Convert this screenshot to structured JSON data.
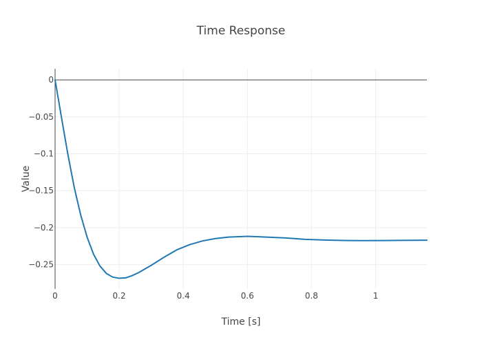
{
  "chart_data": {
    "type": "line",
    "title": "Time Response",
    "xlabel": "Time [s]",
    "ylabel": "Value",
    "xlim": [
      0,
      1.16
    ],
    "ylim": [
      -0.283,
      0.015
    ],
    "xticks": [
      0,
      0.2,
      0.4,
      0.6,
      0.8,
      1
    ],
    "xtick_labels": [
      "0",
      "0.2",
      "0.4",
      "0.6",
      "0.8",
      "1"
    ],
    "yticks": [
      0,
      -0.05,
      -0.1,
      -0.15,
      -0.2,
      -0.25
    ],
    "ytick_labels": [
      "0",
      "−0.05",
      "−0.1",
      "−0.15",
      "−0.2",
      "−0.25"
    ],
    "grid": true,
    "legend": "none",
    "colors": {
      "line": "#1f77b4"
    },
    "series": [
      {
        "x": [
          0,
          0.02,
          0.04,
          0.06,
          0.08,
          0.1,
          0.12,
          0.14,
          0.16,
          0.18,
          0.2,
          0.22,
          0.24,
          0.26,
          0.28,
          0.3,
          0.34,
          0.38,
          0.42,
          0.46,
          0.5,
          0.54,
          0.6,
          0.66,
          0.72,
          0.78,
          0.84,
          0.9,
          0.96,
          1.02,
          1.08,
          1.16
        ],
        "values": [
          0,
          -0.051,
          -0.101,
          -0.146,
          -0.183,
          -0.213,
          -0.236,
          -0.252,
          -0.262,
          -0.267,
          -0.2685,
          -0.268,
          -0.265,
          -0.261,
          -0.256,
          -0.251,
          -0.24,
          -0.23,
          -0.223,
          -0.218,
          -0.2148,
          -0.2128,
          -0.2118,
          -0.2128,
          -0.214,
          -0.2158,
          -0.2168,
          -0.2174,
          -0.2176,
          -0.2175,
          -0.2172,
          -0.217
        ]
      }
    ]
  }
}
